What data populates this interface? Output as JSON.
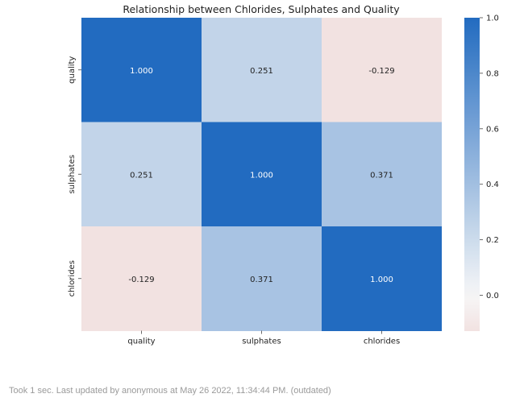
{
  "chart_data": {
    "type": "heatmap",
    "title": "Relationship between Chlorides, Sulphates and Quality",
    "xlabel": "",
    "ylabel": "",
    "x_categories": [
      "quality",
      "sulphates",
      "chlorides"
    ],
    "y_categories": [
      "quality",
      "sulphates",
      "chlorides"
    ],
    "values": [
      [
        1.0,
        0.251,
        -0.129
      ],
      [
        0.251,
        1.0,
        0.371
      ],
      [
        -0.129,
        0.371,
        1.0
      ]
    ],
    "cell_labels": [
      [
        "1.000",
        "0.251",
        "-0.129"
      ],
      [
        "0.251",
        "1.000",
        "0.371"
      ],
      [
        "-0.129",
        "0.371",
        "1.000"
      ]
    ],
    "colorbar": {
      "min": -0.129,
      "max": 1.0,
      "ticks": [
        0.0,
        0.2,
        0.4,
        0.6,
        0.8,
        1.0
      ],
      "tick_labels": [
        "0.0",
        "0.2",
        "0.4",
        "0.6",
        "0.8",
        "1.0"
      ]
    },
    "colors": {
      "low": "#f2e2e1",
      "mid": "#f7f7f7",
      "high": "#226bc0"
    },
    "grid": false,
    "legend": "colorbar-right"
  },
  "footer": {
    "status_text": "Took 1 sec. Last updated by anonymous at May 26 2022, 11:34:44 PM. (outdated)"
  }
}
